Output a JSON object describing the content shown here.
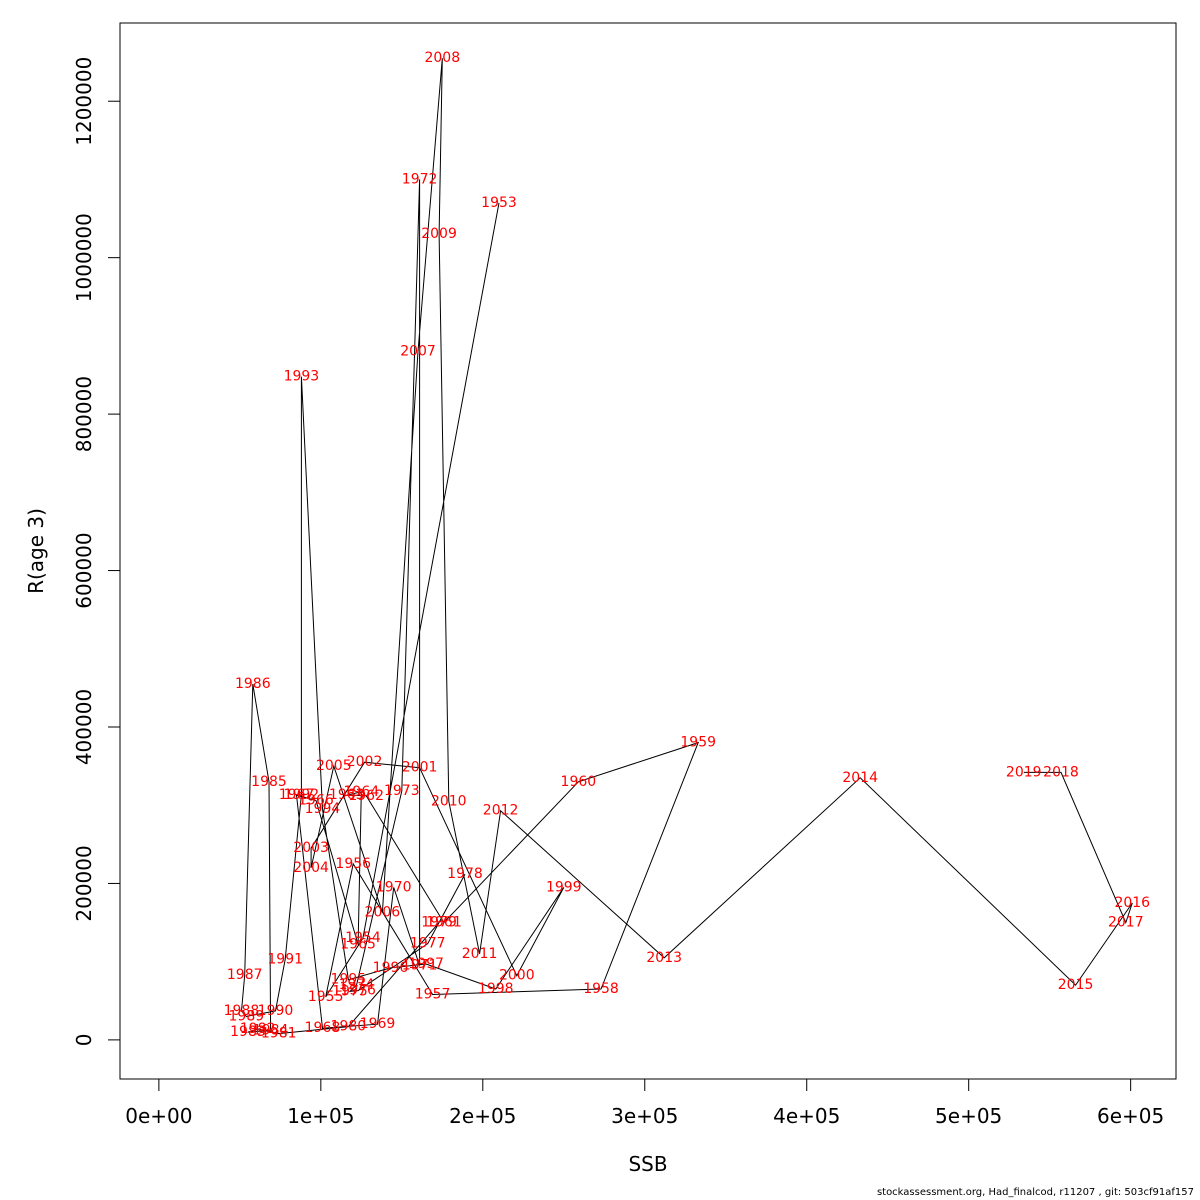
{
  "footer": "stockassessment.org, Had_finalcod, r11207 , git: 503cf91af157",
  "chart_data": {
    "type": "line",
    "xlabel": "SSB",
    "ylabel": "R(age 3)",
    "xlim": [
      -24000,
      628000
    ],
    "ylim": [
      -50000,
      1300000
    ],
    "xticks": [
      0,
      100000,
      200000,
      300000,
      400000,
      500000,
      600000
    ],
    "xtick_labels": [
      "0e+00",
      "1e+05",
      "2e+05",
      "3e+05",
      "4e+05",
      "5e+05",
      "6e+05"
    ],
    "yticks": [
      0,
      200000,
      400000,
      600000,
      800000,
      1000000,
      1200000
    ],
    "ytick_labels": [
      "0",
      "200000",
      "400000",
      "600000",
      "800000",
      "1000000",
      "1200000"
    ],
    "grid": false,
    "points": [
      {
        "label": "1953",
        "x": 210000,
        "y": 1070000
      },
      {
        "label": "1954",
        "x": 126000,
        "y": 130000
      },
      {
        "label": "1955",
        "x": 103000,
        "y": 55000
      },
      {
        "label": "1956",
        "x": 120000,
        "y": 225000
      },
      {
        "label": "1957",
        "x": 169000,
        "y": 58000
      },
      {
        "label": "1958",
        "x": 273000,
        "y": 65000
      },
      {
        "label": "1959",
        "x": 333000,
        "y": 380000
      },
      {
        "label": "1960",
        "x": 259000,
        "y": 330000
      },
      {
        "label": "1961",
        "x": 176000,
        "y": 150000
      },
      {
        "label": "1962",
        "x": 128000,
        "y": 312000
      },
      {
        "label": "1963",
        "x": 116000,
        "y": 313000
      },
      {
        "label": "1964",
        "x": 125000,
        "y": 317000
      },
      {
        "label": "1965",
        "x": 123000,
        "y": 122000
      },
      {
        "label": "1966",
        "x": 97000,
        "y": 306000
      },
      {
        "label": "1967",
        "x": 85000,
        "y": 313000
      },
      {
        "label": "1968",
        "x": 101000,
        "y": 15000
      },
      {
        "label": "1969",
        "x": 135000,
        "y": 20000
      },
      {
        "label": "1970",
        "x": 145000,
        "y": 195000
      },
      {
        "label": "1971",
        "x": 161000,
        "y": 95000
      },
      {
        "label": "1972",
        "x": 161000,
        "y": 1100000
      },
      {
        "label": "1973",
        "x": 150000,
        "y": 318000
      },
      {
        "label": "1974",
        "x": 122000,
        "y": 70000
      },
      {
        "label": "1975",
        "x": 118000,
        "y": 62000
      },
      {
        "label": "1976",
        "x": 123000,
        "y": 63000
      },
      {
        "label": "1977",
        "x": 166000,
        "y": 123000
      },
      {
        "label": "1978",
        "x": 189000,
        "y": 212000
      },
      {
        "label": "1979",
        "x": 173000,
        "y": 150000
      },
      {
        "label": "1980",
        "x": 117000,
        "y": 17000
      },
      {
        "label": "1981",
        "x": 74000,
        "y": 8000
      },
      {
        "label": "1982",
        "x": 61000,
        "y": 14000
      },
      {
        "label": "1983",
        "x": 55000,
        "y": 10000
      },
      {
        "label": "1984",
        "x": 69000,
        "y": 12000
      },
      {
        "label": "1985",
        "x": 68000,
        "y": 330000
      },
      {
        "label": "1986",
        "x": 58000,
        "y": 455000
      },
      {
        "label": "1987",
        "x": 53000,
        "y": 83000
      },
      {
        "label": "1988",
        "x": 51000,
        "y": 37000
      },
      {
        "label": "1989",
        "x": 54000,
        "y": 30000
      },
      {
        "label": "1990",
        "x": 72000,
        "y": 37000
      },
      {
        "label": "1991",
        "x": 78000,
        "y": 103000
      },
      {
        "label": "1992",
        "x": 88000,
        "y": 313000
      },
      {
        "label": "1993",
        "x": 88000,
        "y": 848000
      },
      {
        "label": "1994",
        "x": 101000,
        "y": 295000
      },
      {
        "label": "1995",
        "x": 117000,
        "y": 77000
      },
      {
        "label": "1996",
        "x": 143000,
        "y": 92000
      },
      {
        "label": "1997",
        "x": 165000,
        "y": 97000
      },
      {
        "label": "1998",
        "x": 208000,
        "y": 65000
      },
      {
        "label": "1999",
        "x": 250000,
        "y": 195000
      },
      {
        "label": "2000",
        "x": 221000,
        "y": 82000
      },
      {
        "label": "2001",
        "x": 161000,
        "y": 348000
      },
      {
        "label": "2002",
        "x": 127000,
        "y": 355000
      },
      {
        "label": "2003",
        "x": 94000,
        "y": 245000
      },
      {
        "label": "2004",
        "x": 94000,
        "y": 220000
      },
      {
        "label": "2005",
        "x": 108000,
        "y": 350000
      },
      {
        "label": "2006",
        "x": 138000,
        "y": 163000
      },
      {
        "label": "2007",
        "x": 160000,
        "y": 880000
      },
      {
        "label": "2008",
        "x": 175000,
        "y": 1255000
      },
      {
        "label": "2009",
        "x": 173000,
        "y": 1030000
      },
      {
        "label": "2010",
        "x": 179000,
        "y": 305000
      },
      {
        "label": "2011",
        "x": 198000,
        "y": 110000
      },
      {
        "label": "2012",
        "x": 211000,
        "y": 293000
      },
      {
        "label": "2013",
        "x": 312000,
        "y": 105000
      },
      {
        "label": "2014",
        "x": 433000,
        "y": 335000
      },
      {
        "label": "2015",
        "x": 566000,
        "y": 70000
      },
      {
        "label": "2016",
        "x": 601000,
        "y": 175000
      },
      {
        "label": "2017",
        "x": 597000,
        "y": 150000
      },
      {
        "label": "2018",
        "x": 557000,
        "y": 342000
      },
      {
        "label": "2019",
        "x": 534000,
        "y": 342000
      }
    ]
  }
}
